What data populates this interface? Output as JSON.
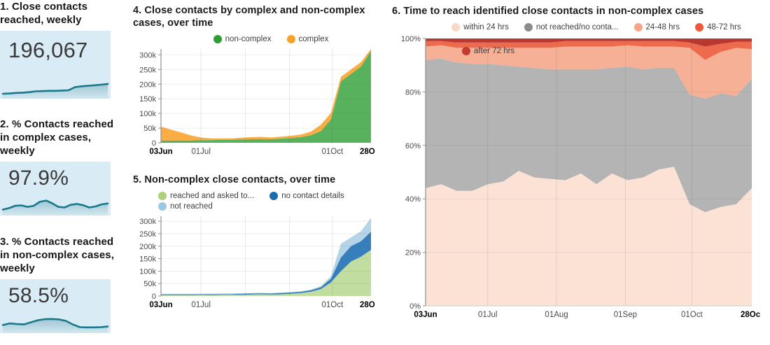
{
  "kpis": [
    {
      "title": "1. Close contacts reached, weekly",
      "value": "196,067",
      "card_bg": "#d9ecf5",
      "line_color": "#18798b",
      "spark": [
        0.08,
        0.09,
        0.11,
        0.12,
        0.14,
        0.17,
        0.18,
        0.19,
        0.19,
        0.2,
        0.21,
        0.33,
        0.36,
        0.38,
        0.4,
        0.42,
        0.45
      ]
    },
    {
      "title": "2. % Contacts reached in complex cases, weekly",
      "value": "97.9%",
      "card_bg": "#d9ecf5",
      "line_color": "#18798b",
      "spark": [
        0.15,
        0.22,
        0.33,
        0.35,
        0.28,
        0.33,
        0.52,
        0.58,
        0.45,
        0.28,
        0.25,
        0.38,
        0.42,
        0.36,
        0.25,
        0.3,
        0.4,
        0.44
      ]
    },
    {
      "title": "3. % Contacts reached in non-complex cases, weekly",
      "value": "58.5%",
      "card_bg": "#d9ecf5",
      "line_color": "#18798b",
      "spark": [
        0.25,
        0.33,
        0.3,
        0.28,
        0.38,
        0.48,
        0.53,
        0.54,
        0.52,
        0.45,
        0.28,
        0.15,
        0.14,
        0.14,
        0.15,
        0.18
      ]
    }
  ],
  "chart_data": [
    {
      "type": "area",
      "stacked": true,
      "title": "4. Close contacts by complex and non-complex cases, over time",
      "categories": [
        "03Jun",
        "10Jun",
        "17Jun",
        "24Jun",
        "01Jul",
        "08Jul",
        "15Jul",
        "22Jul",
        "29Jul",
        "05Aug",
        "12Aug",
        "19Aug",
        "26Aug",
        "02Sep",
        "09Sep",
        "16Sep",
        "23Sep",
        "30Sep",
        "07Oct",
        "14Oct",
        "21Oct",
        "28Oct"
      ],
      "series": [
        {
          "name": "non-complex",
          "color": "#2e9d33",
          "fill_opacity": 0.8,
          "values": [
            8000,
            8000,
            8000,
            8000,
            9000,
            9000,
            10000,
            10000,
            11000,
            12000,
            13000,
            12000,
            14000,
            16000,
            19000,
            26000,
            40000,
            80000,
            210000,
            235000,
            260000,
            313000
          ]
        },
        {
          "name": "complex",
          "color": "#f9a229",
          "fill_opacity": 0.88,
          "values": [
            47000,
            37000,
            27000,
            17000,
            9000,
            6000,
            5000,
            5000,
            6000,
            7000,
            7000,
            6000,
            7000,
            8000,
            9000,
            12000,
            22000,
            22000,
            15000,
            15000,
            15000,
            15000
          ]
        }
      ],
      "ylim": [
        0,
        320000
      ],
      "yticks": [
        0,
        50000,
        100000,
        150000,
        200000,
        250000,
        300000
      ],
      "ytick_labels": [
        "0",
        "50k",
        "100k",
        "150k",
        "200k",
        "250k",
        "300k"
      ],
      "x_ticks": [
        {
          "label": "03Jun",
          "pos": 0,
          "bold": true
        },
        {
          "label": "01Jul",
          "pos": 4,
          "bold": false
        },
        {
          "label": "01Oct",
          "pos": 17.14,
          "bold": false
        },
        {
          "label": "28Oct",
          "pos": 21,
          "bold": true
        }
      ],
      "grid_x": [
        4,
        8.43,
        12.86,
        17.14
      ],
      "legend_rows": [
        [
          {
            "label": "non-complex",
            "color": "#2e9d33"
          },
          {
            "label": "complex",
            "color": "#f9a229"
          }
        ]
      ],
      "legend_position": "top-center"
    },
    {
      "type": "area",
      "stacked": true,
      "title": "5. Non-complex close contacts, over time",
      "categories": [
        "03Jun",
        "10Jun",
        "17Jun",
        "24Jun",
        "01Jul",
        "08Jul",
        "15Jul",
        "22Jul",
        "29Jul",
        "05Aug",
        "12Aug",
        "19Aug",
        "26Aug",
        "02Sep",
        "09Sep",
        "16Sep",
        "23Sep",
        "30Sep",
        "07Oct",
        "14Oct",
        "21Oct",
        "28Oct"
      ],
      "series": [
        {
          "name": "reached and asked to...",
          "color": "#a9d07b",
          "fill_opacity": 0.72,
          "values": [
            4000,
            4000,
            4000,
            4000,
            5000,
            4000,
            5000,
            5000,
            5000,
            6000,
            7000,
            6000,
            7000,
            9000,
            12000,
            17000,
            28000,
            55000,
            100000,
            138000,
            158000,
            185000
          ]
        },
        {
          "name": "no contact details",
          "color": "#2171b5",
          "fill_opacity": 0.9,
          "values": [
            3000,
            3000,
            3000,
            3000,
            3000,
            3000,
            3000,
            3000,
            4000,
            4000,
            4000,
            4000,
            5000,
            5000,
            5000,
            6000,
            8000,
            15000,
            55000,
            62000,
            62000,
            73000
          ]
        },
        {
          "name": "not reached",
          "color": "#a6cee3",
          "fill_opacity": 0.85,
          "values": [
            1000,
            1000,
            1000,
            1000,
            1000,
            2000,
            2000,
            2000,
            2000,
            2000,
            2000,
            2000,
            2000,
            2000,
            2000,
            3000,
            4000,
            10000,
            55000,
            35000,
            40000,
            55000
          ]
        }
      ],
      "ylim": [
        0,
        320000
      ],
      "yticks": [
        0,
        50000,
        100000,
        150000,
        200000,
        250000,
        300000
      ],
      "ytick_labels": [
        "0",
        "50k",
        "100k",
        "150k",
        "200k",
        "250k",
        "300k"
      ],
      "x_ticks": [
        {
          "label": "03Jun",
          "pos": 0,
          "bold": true
        },
        {
          "label": "01Jul",
          "pos": 4,
          "bold": false
        },
        {
          "label": "01Oct",
          "pos": 17.14,
          "bold": false
        },
        {
          "label": "28Oct",
          "pos": 21,
          "bold": true
        }
      ],
      "grid_x": [
        4,
        8.43,
        12.86,
        17.14
      ],
      "legend_rows": [
        [
          {
            "label": "reached and asked to...",
            "color": "#add17a"
          },
          {
            "label": "no contact details",
            "color": "#1f6aab"
          }
        ],
        [
          {
            "label": "not reached",
            "color": "#9dc7e2"
          }
        ]
      ],
      "legend_position": "top-left"
    },
    {
      "type": "area",
      "stacked": true,
      "title": "6. Time to reach identified close contacts in non-complex cases",
      "categories": [
        "03Jun",
        "10Jun",
        "17Jun",
        "24Jun",
        "01Jul",
        "08Jul",
        "15Jul",
        "22Jul",
        "29Jul",
        "05Aug",
        "12Aug",
        "19Aug",
        "26Aug",
        "02Sep",
        "09Sep",
        "16Sep",
        "23Sep",
        "30Sep",
        "07Oct",
        "14Oct",
        "21Oct",
        "28Oct"
      ],
      "unit": "%",
      "series": [
        {
          "name": "within 24 hrs",
          "color": "#fbe2d5",
          "fill_opacity": 1,
          "values": [
            44,
            45.5,
            43,
            43,
            45.5,
            46.5,
            50.5,
            48,
            47.5,
            47,
            49.5,
            45.5,
            49.5,
            47,
            48,
            51,
            52,
            38,
            35,
            37,
            38,
            44
          ]
        },
        {
          "name": "not reached/no contact details",
          "color": "#b4b4b4",
          "fill_opacity": 1,
          "values": [
            48,
            47,
            48,
            47.5,
            45,
            43.5,
            39,
            41,
            41,
            41.5,
            39,
            43,
            39.5,
            42.5,
            40.5,
            38,
            37,
            41,
            42.5,
            42.5,
            40.5,
            41
          ]
        },
        {
          "name": "24-48 hrs",
          "color": "#f6b095",
          "fill_opacity": 1,
          "values": [
            5,
            5,
            5.5,
            6,
            6,
            6.5,
            7,
            7.5,
            8,
            8.5,
            8.5,
            8.5,
            8,
            8,
            8.5,
            8,
            8,
            17.5,
            14.5,
            15.5,
            18,
            11
          ]
        },
        {
          "name": "48-72 hrs",
          "color": "#ee6a4d",
          "fill_opacity": 1,
          "values": [
            2,
            1.5,
            2,
            2,
            2,
            2,
            2,
            2,
            2,
            2,
            2,
            2,
            2,
            1.5,
            2,
            2,
            2,
            2,
            5,
            3,
            2.25,
            2.75
          ]
        },
        {
          "name": "after 72 hrs",
          "color": "#b83730",
          "fill_opacity": 1,
          "values": [
            1,
            1,
            1.5,
            1.5,
            1.5,
            1.5,
            1.5,
            1.5,
            1.5,
            1,
            1,
            1,
            1,
            1,
            1,
            1,
            1,
            1.5,
            3,
            2,
            1.25,
            1.25
          ]
        }
      ],
      "ylim": [
        0,
        100
      ],
      "yticks": [
        0,
        20,
        40,
        60,
        80,
        100
      ],
      "ytick_labels": [
        "0%",
        "20%",
        "40%",
        "60%",
        "80%",
        "100%"
      ],
      "x_ticks": [
        {
          "label": "03Jun",
          "pos": 0,
          "bold": true
        },
        {
          "label": "01Jul",
          "pos": 4,
          "bold": false
        },
        {
          "label": "01Aug",
          "pos": 8.43,
          "bold": false
        },
        {
          "label": "01Sep",
          "pos": 12.86,
          "bold": false
        },
        {
          "label": "01Oct",
          "pos": 17.14,
          "bold": false
        },
        {
          "label": "28Oct",
          "pos": 21,
          "bold": true
        }
      ],
      "grid_x": [
        4,
        8.43,
        12.86,
        17.14
      ],
      "grid_y": true,
      "baseline": true,
      "legend_rows": [
        [
          {
            "label": "within 24 hrs",
            "color": "#fad8c8"
          },
          {
            "label": "not reached/no conta...",
            "color": "#8c8c8c"
          },
          {
            "label": "24-48 hrs",
            "color": "#f9a58a"
          },
          {
            "label": "48-72 hrs",
            "color": "#f0583e"
          }
        ]
      ],
      "legend_overlay": {
        "label": "after 72 hrs",
        "color": "#c33a31"
      },
      "legend_position": "top-center"
    }
  ]
}
